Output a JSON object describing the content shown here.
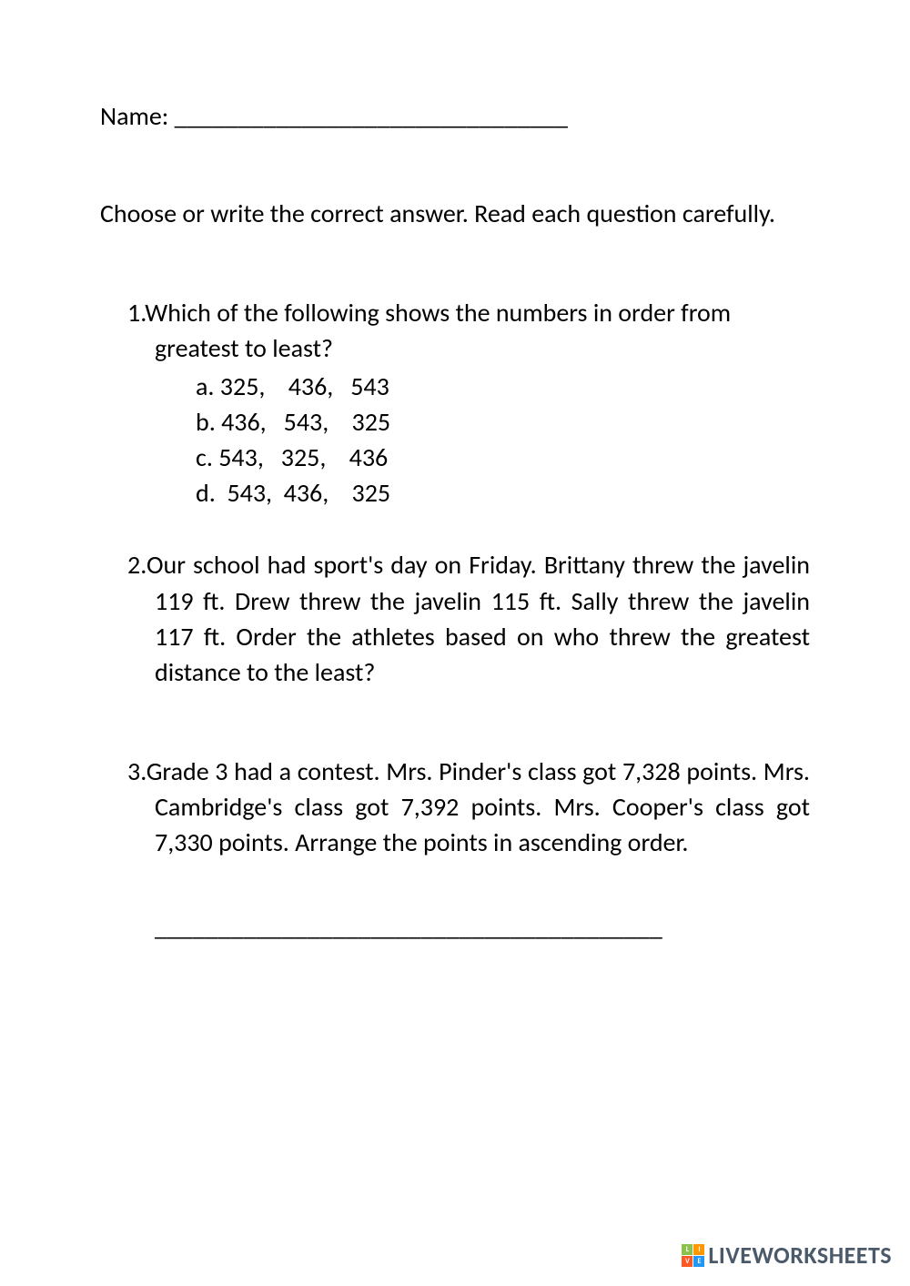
{
  "name_field": {
    "label": "Name:",
    "line": "_______________________________"
  },
  "instructions": "Choose or write the correct answer. Read each question carefully.",
  "questions": {
    "q1": {
      "number": "1.",
      "text": "Which of the following shows the numbers in order from greatest to least?",
      "options": {
        "a": "a. 325,    436,   543",
        "b": "b. 436,   543,    325",
        "c": "c. 543,   325,    436",
        "d": "d.  543,  436,    325"
      }
    },
    "q2": {
      "number": "2.",
      "text": "Our school had sport's day on Friday. Brittany threw the javelin 119 ft. Drew threw the javelin 115 ft. Sally threw the javelin 117 ft. Order the athletes based on who threw the greatest distance to the least?"
    },
    "q3": {
      "number": "3.",
      "text": "Grade 3 had a contest. Mrs. Pinder's class got 7,328 points. Mrs. Cambridge's class got 7,392 points. Mrs. Cooper's class got 7,330 points. Arrange the points in ascending order.",
      "answer_line": "________________________________________"
    }
  },
  "footer": {
    "brand": "LIVEWORKSHEETS",
    "logo_cells": [
      "L",
      "I",
      "V",
      "E"
    ],
    "logo_colors": [
      "#8bc34a",
      "#ff9800",
      "#ff5722",
      "#2196f3"
    ]
  },
  "colors": {
    "text": "#000000",
    "background": "#ffffff",
    "brand_text": "#4a5a6a"
  }
}
